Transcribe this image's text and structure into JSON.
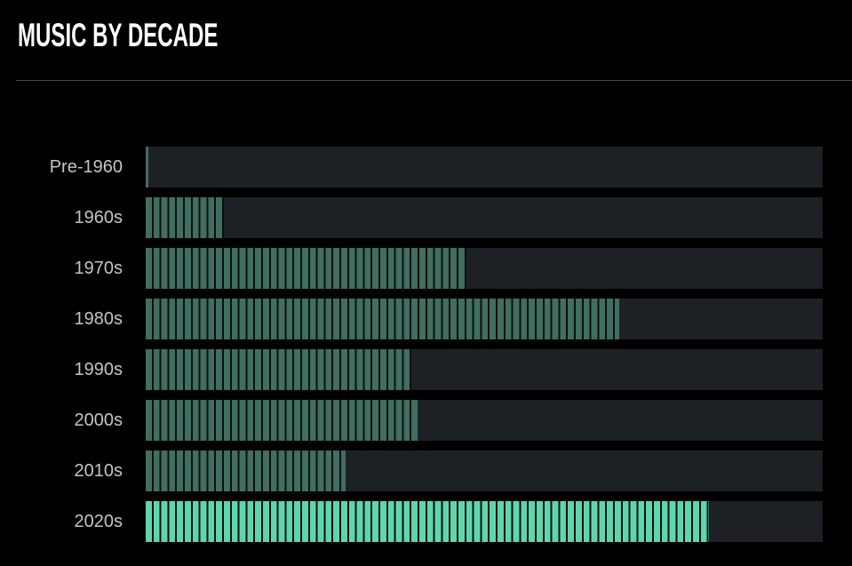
{
  "header": {
    "title": "MUSIC BY DECADE"
  },
  "colors": {
    "background": "#000000",
    "track": "#1d2126",
    "bar_fill": "#406e60",
    "bar_fill_highlight": "#5ed6ad",
    "segment_gap": "#0c0e10",
    "label_text": "#c2c5c8",
    "title_text": "#ffffff",
    "divider": "#474747"
  },
  "chart_data": {
    "type": "bar",
    "orientation": "horizontal",
    "title": "MUSIC BY DECADE",
    "categories": [
      "Pre-1960",
      "1960s",
      "1970s",
      "1980s",
      "1990s",
      "2000s",
      "2010s",
      "2020s"
    ],
    "values_pct_of_axis": [
      0.4,
      11.5,
      47.4,
      69.9,
      39.2,
      40.2,
      29.5,
      83.2
    ],
    "highlighted_category": "2020s",
    "xlabel": "",
    "ylabel": "",
    "axis_ticks_visible": false,
    "gridlines": false,
    "legend_position": "none",
    "bar_style": "segmented stripes, ~8.8px pitch",
    "note": "no numeric axis labels visible; values estimated as percent of full track width"
  }
}
